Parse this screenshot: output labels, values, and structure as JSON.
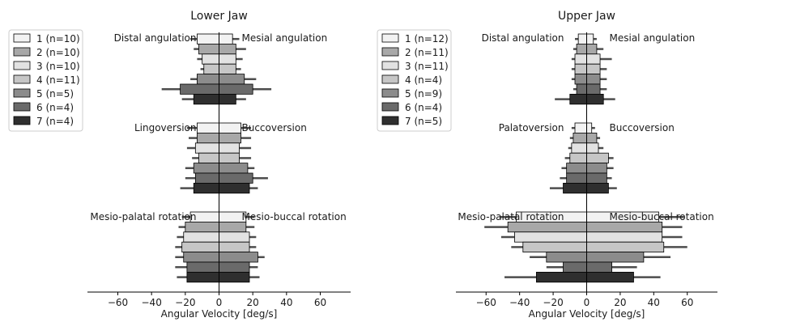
{
  "xlabel": "Angular Velocity [deg/s]",
  "chart_data": [
    {
      "type": "bar",
      "title": "Lower Jaw",
      "xlabel": "Angular Velocity [deg/s]",
      "xlim": [
        -78,
        78
      ],
      "xticks": [
        -60,
        -40,
        -20,
        0,
        20,
        40,
        60
      ],
      "legend": {
        "placement": "top-left",
        "entries": [
          "1 (n=10)",
          "2 (n=10)",
          "3 (n=10)",
          "4 (n=11)",
          "5 (n=5)",
          "6 (n=4)",
          "7 (n=4)"
        ]
      },
      "shades": [
        "#f2f2f2",
        "#a8a8a8",
        "#e2e2e2",
        "#c6c6c6",
        "#8c8c8c",
        "#6a6a6a",
        "#2f2f2f"
      ],
      "panels": [
        {
          "left_label": "Distal angulation",
          "right_label": "Mesial angulation",
          "negative": [
            -13,
            -12,
            -10,
            -9,
            -13,
            -23,
            -15
          ],
          "negative_err": [
            4,
            3,
            3,
            2,
            4,
            11,
            7
          ],
          "positive": [
            8,
            10,
            10,
            10,
            15,
            20,
            10
          ],
          "positive_err": [
            4,
            6,
            4,
            3,
            7,
            11,
            6
          ]
        },
        {
          "left_label": "Lingoversion",
          "right_label": "Buccoversion",
          "negative": [
            -13,
            -13,
            -14,
            -12,
            -15,
            -14,
            -15
          ],
          "negative_err": [
            6,
            5,
            5,
            4,
            5,
            6,
            8
          ],
          "positive": [
            13,
            13,
            12,
            12,
            17,
            20,
            18
          ],
          "positive_err": [
            6,
            6,
            7,
            7,
            4,
            9,
            5
          ]
        },
        {
          "left_label": "Mesio-palatal rotation",
          "right_label": "Mesio-buccal rotation",
          "negative": [
            -17,
            -20,
            -21,
            -22,
            -21,
            -19,
            -19
          ],
          "negative_err": [
            5,
            4,
            4,
            4,
            5,
            7,
            6
          ],
          "positive": [
            16,
            16,
            18,
            18,
            23,
            18,
            18
          ],
          "positive_err": [
            5,
            5,
            4,
            4,
            4,
            5,
            6
          ]
        }
      ]
    },
    {
      "type": "bar",
      "title": "Upper Jaw",
      "xlabel": "Angular Velocity [deg/s]",
      "xlim": [
        -78,
        78
      ],
      "xticks": [
        -60,
        -40,
        -20,
        0,
        20,
        40,
        60
      ],
      "legend": {
        "placement": "top-left",
        "entries": [
          "1 (n=12)",
          "2 (n=11)",
          "3 (n=11)",
          "4 (n=4)",
          "5 (n=9)",
          "6 (n=4)",
          "7 (n=5)"
        ]
      },
      "shades": [
        "#f2f2f2",
        "#a8a8a8",
        "#e2e2e2",
        "#c6c6c6",
        "#8c8c8c",
        "#6a6a6a",
        "#2f2f2f"
      ],
      "panels": [
        {
          "left_label": "Distal angulation",
          "right_label": "Mesial angulation",
          "negative": [
            -5,
            -6,
            -7,
            -7,
            -7,
            -6,
            -10
          ],
          "negative_err": [
            2,
            2,
            2,
            2,
            2,
            2,
            9
          ],
          "positive": [
            4,
            6,
            8,
            8,
            8,
            8,
            10
          ],
          "positive_err": [
            2,
            4,
            7,
            4,
            4,
            4,
            7
          ]
        },
        {
          "left_label": "Palatoversion",
          "right_label": "Buccoversion",
          "negative": [
            -7,
            -8,
            -9,
            -10,
            -12,
            -12,
            -14
          ],
          "negative_err": [
            2,
            2,
            2,
            3,
            3,
            4,
            8
          ],
          "positive": [
            3,
            6,
            7,
            13,
            12,
            12,
            13
          ],
          "positive_err": [
            2,
            2,
            3,
            3,
            4,
            3,
            5
          ]
        },
        {
          "left_label": "Mesio-palatal rotation",
          "right_label": "Mesio-buccal rotation",
          "negative": [
            -42,
            -47,
            -43,
            -38,
            -24,
            -14,
            -30
          ],
          "negative_err": [
            10,
            14,
            8,
            7,
            10,
            10,
            19
          ],
          "positive": [
            43,
            45,
            45,
            46,
            34,
            15,
            28
          ],
          "positive_err": [
            15,
            12,
            12,
            14,
            16,
            15,
            16
          ]
        }
      ]
    }
  ]
}
